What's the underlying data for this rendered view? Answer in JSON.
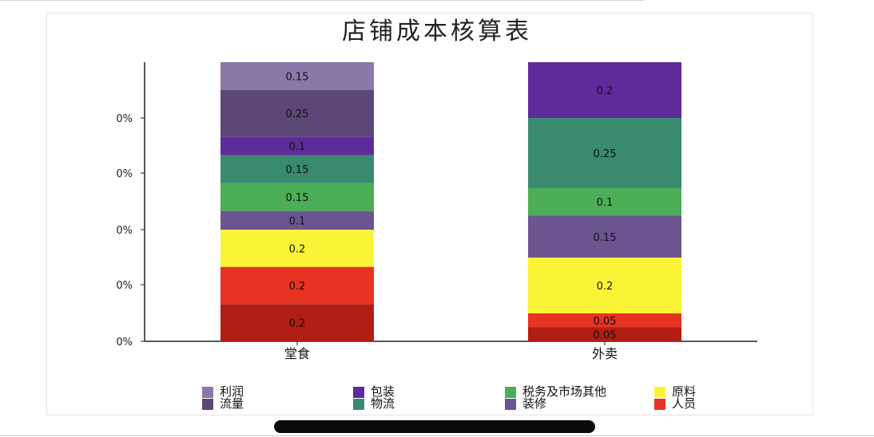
{
  "title": "店铺成本核算表",
  "chart_data": {
    "type": "bar",
    "stacked": true,
    "categories": [
      "堂食",
      "外卖"
    ],
    "series": [
      {
        "name": "人员",
        "values": [
          0.2,
          0.05
        ],
        "labels": [
          "0.2",
          "0.05"
        ],
        "color": "#b01e14"
      },
      {
        "name": "原料",
        "values": [
          0.2,
          0.05
        ],
        "labels": [
          "0.2",
          "0.05"
        ],
        "color": "#e83322"
      },
      {
        "name": "装修",
        "values": [
          0.2,
          0.2
        ],
        "labels": [
          "0.2",
          "0.2"
        ],
        "color": "#fbf436"
      },
      {
        "name": "税务及市场其他",
        "values": [
          0.1,
          0.15
        ],
        "labels": [
          "0.1",
          "0.15"
        ],
        "color": "#6b5591"
      },
      {
        "name": "物流",
        "values": [
          0.15,
          0.1
        ],
        "labels": [
          "0.15",
          "0.1"
        ],
        "color": "#4cae56"
      },
      {
        "name": "包装",
        "values": [
          0.15,
          0.25
        ],
        "labels": [
          "0.15",
          "0.25"
        ],
        "color": "#3a8a6e"
      },
      {
        "name": "流量",
        "values": [
          0.1,
          0.2
        ],
        "labels": [
          "0.1",
          "0.2"
        ],
        "color": "#5e2b9b"
      },
      {
        "name": "利润",
        "values": [
          0.25,
          0.0
        ],
        "labels": [
          "0.25",
          ""
        ],
        "color": "#5b4878"
      },
      {
        "name": "利润_top",
        "values": [
          0.15,
          0.0
        ],
        "labels": [
          "0.15",
          ""
        ],
        "color": "#8a78a8"
      }
    ],
    "y_tick_labels": [
      "0%",
      "0%",
      "0%",
      "0%",
      "0%"
    ],
    "legend": [
      {
        "label": "利润",
        "color": "#8a78a8"
      },
      {
        "label": "流量",
        "color": "#5b4878"
      },
      {
        "label": "包装",
        "color": "#5e2b9b"
      },
      {
        "label": "物流",
        "color": "#3a8a6e"
      },
      {
        "label": "税务及市场其他",
        "color": "#4cae56"
      },
      {
        "label": "装修",
        "color": "#6b5591"
      },
      {
        "label": "原料",
        "color": "#fbf436"
      },
      {
        "label": "人员",
        "color": "#e83322"
      }
    ],
    "legend_position": "bottom"
  }
}
